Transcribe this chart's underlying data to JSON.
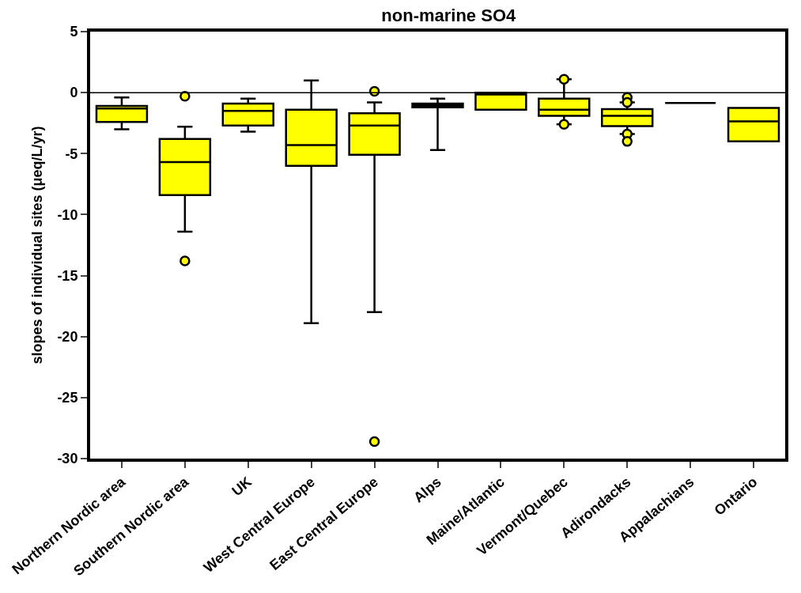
{
  "chart_data": {
    "type": "box",
    "title": "non-marine SO4",
    "ylabel": "slopes of individual sites (μeq/L/yr)",
    "categories": [
      "Northern Nordic area",
      "Southern Nordic area",
      "UK",
      "West Central Europe",
      "East Central Europe",
      "Alps",
      "Maine/Atlantic",
      "Vermont/Quebec",
      "Adirondacks",
      "Appalachians",
      "Ontario"
    ],
    "colors": [
      "#ffff00",
      "#ffff00",
      "#ffff00",
      "#ffff00",
      "#ffff00",
      "#ffff00",
      "#ffff00",
      "#ffff00",
      "#ffff00",
      "#000000",
      "#ffff00"
    ],
    "boxes": [
      {
        "low": -3.0,
        "q1": -2.4,
        "median": -1.3,
        "q3": -1.1,
        "high": -0.4
      },
      {
        "low": -11.4,
        "q1": -8.4,
        "median": -5.7,
        "q3": -3.8,
        "high": -2.8,
        "outliers": [
          -0.3,
          -13.8
        ]
      },
      {
        "low": -3.2,
        "q1": -2.7,
        "median": -1.5,
        "q3": -0.9,
        "high": -0.5
      },
      {
        "low": -18.9,
        "q1": -6.0,
        "median": -4.3,
        "q3": -1.4,
        "high": 1.0
      },
      {
        "low": -18.0,
        "q1": -5.1,
        "median": -2.7,
        "q3": -1.7,
        "high": -0.8,
        "outliers": [
          0.1,
          -28.6
        ]
      },
      {
        "low": -4.7,
        "q1": -1.2,
        "median": -1.05,
        "q3": -0.9,
        "high": -0.5
      },
      {
        "low": -1.4,
        "q1": -1.4,
        "median": -0.15,
        "q3": 0.0,
        "high": 0.0
      },
      {
        "low": -2.6,
        "q1": -1.9,
        "median": -1.4,
        "q3": -0.5,
        "high": 1.1,
        "outliers": [
          1.1,
          -2.6
        ]
      },
      {
        "low": -3.4,
        "q1": -2.75,
        "median": -1.9,
        "q3": -1.35,
        "high": -0.8,
        "outliers": [
          -0.4,
          -0.8,
          -3.4,
          -4.0
        ]
      },
      {
        "low": -0.85,
        "q1": -0.85,
        "median": -0.85,
        "q3": -0.85,
        "high": -0.85
      },
      {
        "low": -4.0,
        "q1": -4.0,
        "median": -2.35,
        "q3": -1.25,
        "high": -1.25
      }
    ],
    "ylim": [
      -30,
      5
    ],
    "yticks": [
      -30,
      -25,
      -20,
      -15,
      -10,
      -5,
      0,
      5
    ],
    "ref_lines": [
      {
        "axis": "y",
        "value": 0,
        "color": "#000000"
      }
    ],
    "marker": "circle"
  }
}
